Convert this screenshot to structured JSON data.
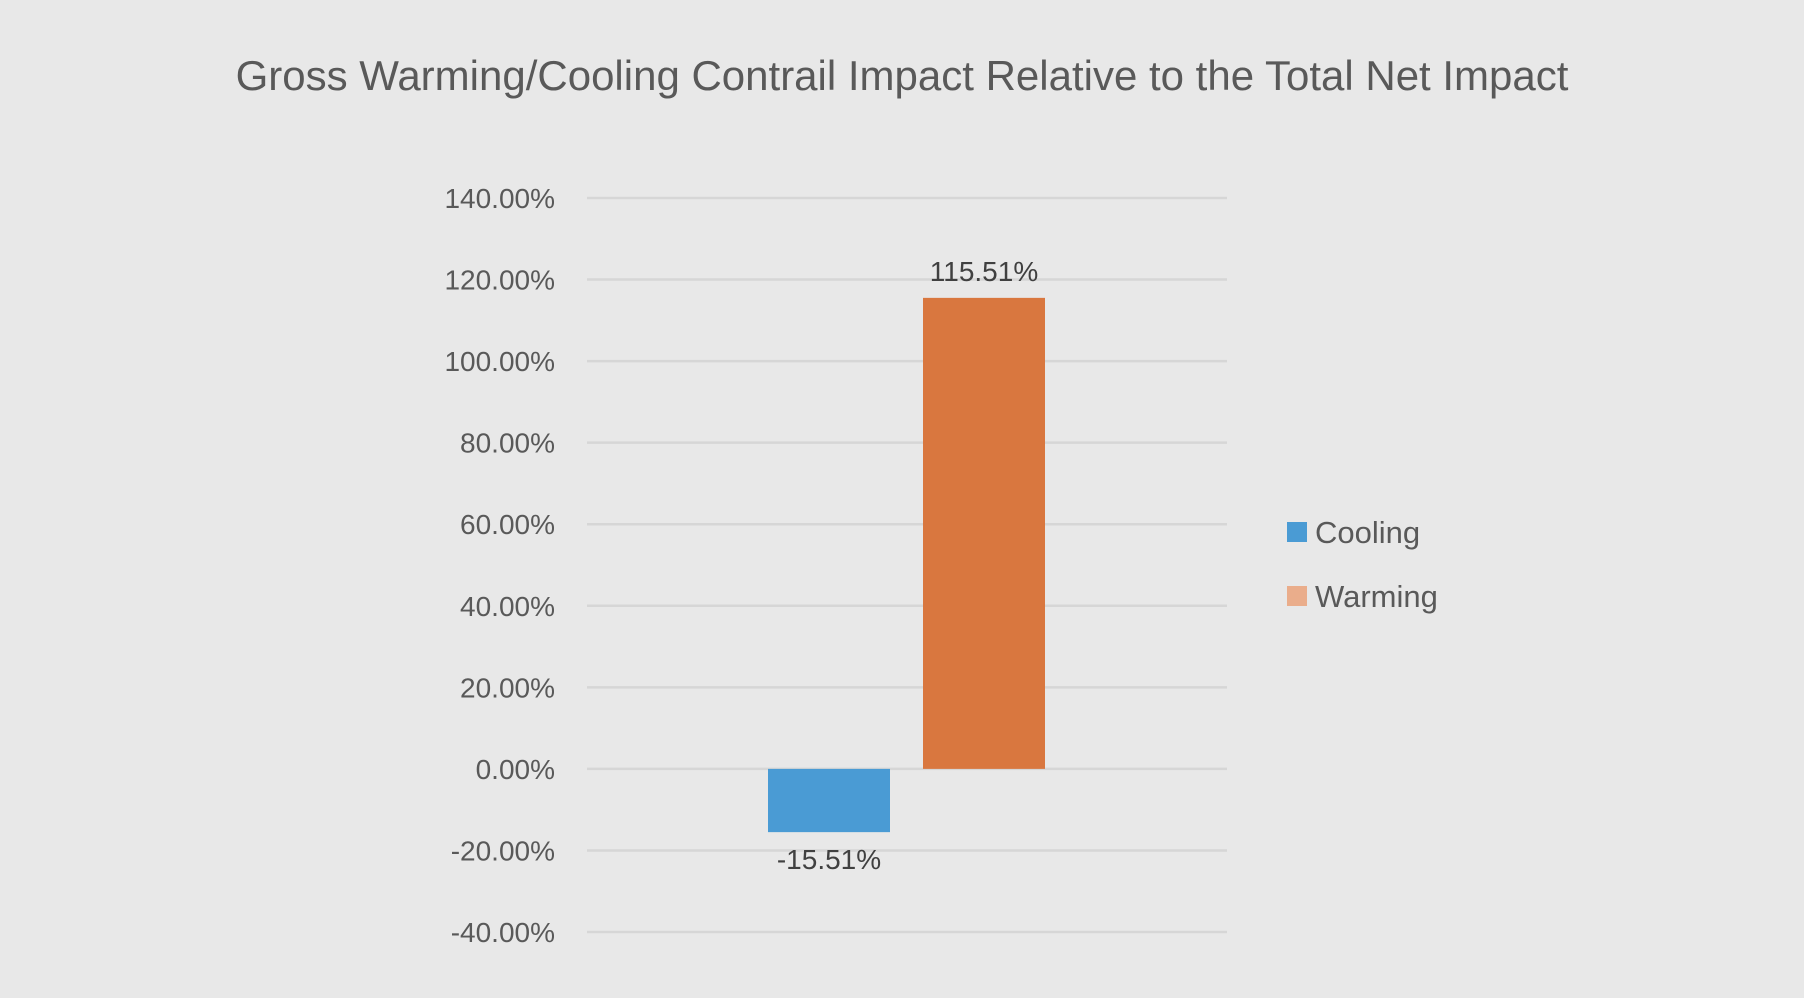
{
  "chart_data": {
    "type": "bar",
    "title": "Gross Warming/Cooling Contrail Impact Relative to the Total Net Impact",
    "xlabel": "",
    "ylabel": "",
    "ylim": [
      -40,
      140
    ],
    "yticks": [
      140,
      120,
      100,
      80,
      60,
      40,
      20,
      0,
      -20,
      -40
    ],
    "ytick_labels": [
      "140.00%",
      "120.00%",
      "100.00%",
      "80.00%",
      "60.00%",
      "40.00%",
      "20.00%",
      "0.00%",
      "-20.00%",
      "-40.00%"
    ],
    "grid": true,
    "categories": [
      ""
    ],
    "series": [
      {
        "name": "Cooling",
        "values": [
          -15.51
        ],
        "label": "-15.51%",
        "color": "#4a9bd4",
        "legend_color": "#4a9bd4"
      },
      {
        "name": "Warming",
        "values": [
          115.51
        ],
        "label": "115.51%",
        "color": "#d9773f",
        "legend_color": "#eaad8b"
      }
    ],
    "legend_position": "right"
  }
}
